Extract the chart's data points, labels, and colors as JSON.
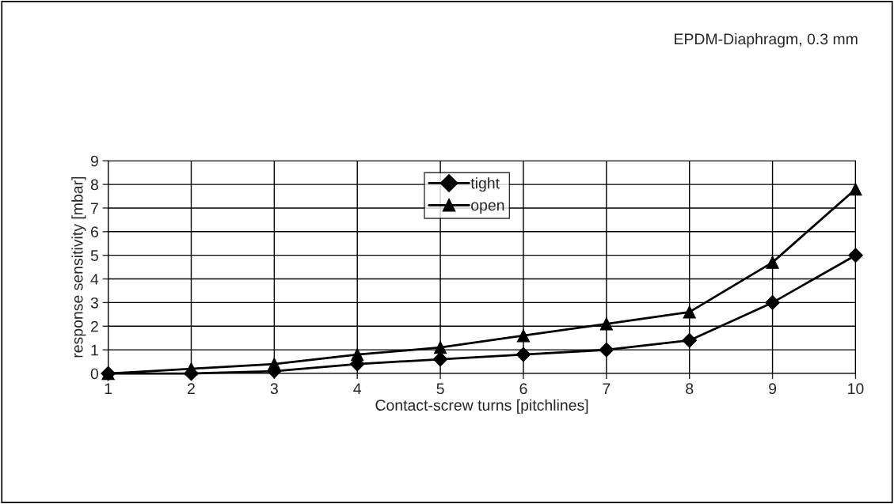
{
  "chart_data": {
    "type": "line",
    "xlabel": "Contact-screw turns [pitchlines]",
    "ylabel": "response sensitivity [mbar]",
    "annotations": [
      "EPDM-Diaphragm, 0.3 mm"
    ],
    "x": [
      1,
      2,
      3,
      4,
      5,
      6,
      7,
      8,
      9,
      10
    ],
    "series": [
      {
        "name": "tight",
        "color": "#000000",
        "marker": "diamond",
        "values": [
          0,
          0,
          0.1,
          0.4,
          0.6,
          0.8,
          1.0,
          1.4,
          3.0,
          5.0
        ]
      },
      {
        "name": "open",
        "color": "#000000",
        "marker": "triangle",
        "values": [
          0,
          0.2,
          0.4,
          0.8,
          1.1,
          1.6,
          2.1,
          2.6,
          4.7,
          7.8
        ]
      }
    ],
    "xlim": [
      1,
      10
    ],
    "xticks": [
      1,
      2,
      3,
      4,
      5,
      6,
      7,
      8,
      9,
      10
    ],
    "ylim": [
      0,
      9
    ],
    "yticks": [
      0,
      1,
      2,
      3,
      4,
      5,
      6,
      7,
      8,
      9
    ],
    "grid": true,
    "legend": "top",
    "line_style": "solid"
  }
}
